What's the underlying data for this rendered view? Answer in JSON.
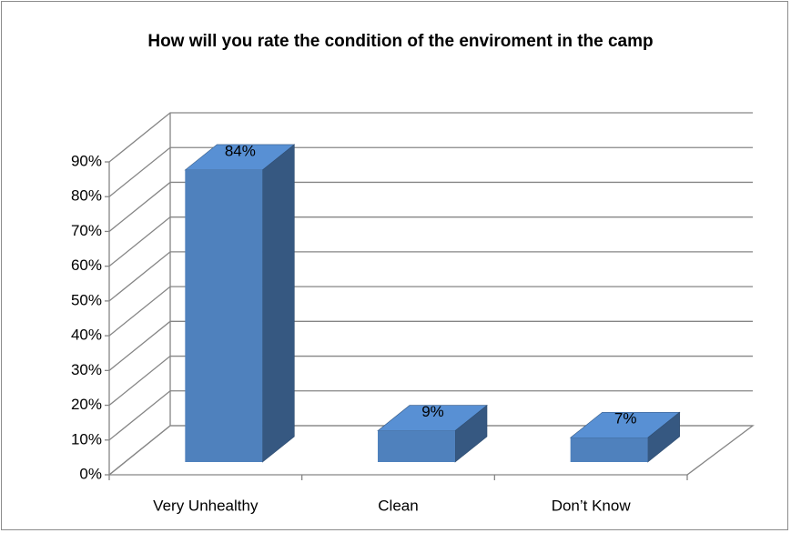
{
  "chart_data": {
    "type": "bar3d",
    "title": "How will you rate the condition of the enviroment in the camp",
    "categories": [
      "Very Unhealthy",
      "Clean",
      "Don’t Know"
    ],
    "values": [
      84,
      9,
      7
    ],
    "value_labels": [
      "84%",
      "9%",
      "7%"
    ],
    "color": "#4f81bd",
    "ylim": [
      0,
      90
    ],
    "yticks": [
      {
        "value": 0,
        "label": "0%"
      },
      {
        "value": 10,
        "label": "10%"
      },
      {
        "value": 20,
        "label": "20%"
      },
      {
        "value": 30,
        "label": "30%"
      },
      {
        "value": 40,
        "label": "40%"
      },
      {
        "value": 50,
        "label": "50%"
      },
      {
        "value": 60,
        "label": "60%"
      },
      {
        "value": 70,
        "label": "70%"
      },
      {
        "value": 80,
        "label": "80%"
      },
      {
        "value": 90,
        "label": "90%"
      }
    ],
    "grid": true
  }
}
